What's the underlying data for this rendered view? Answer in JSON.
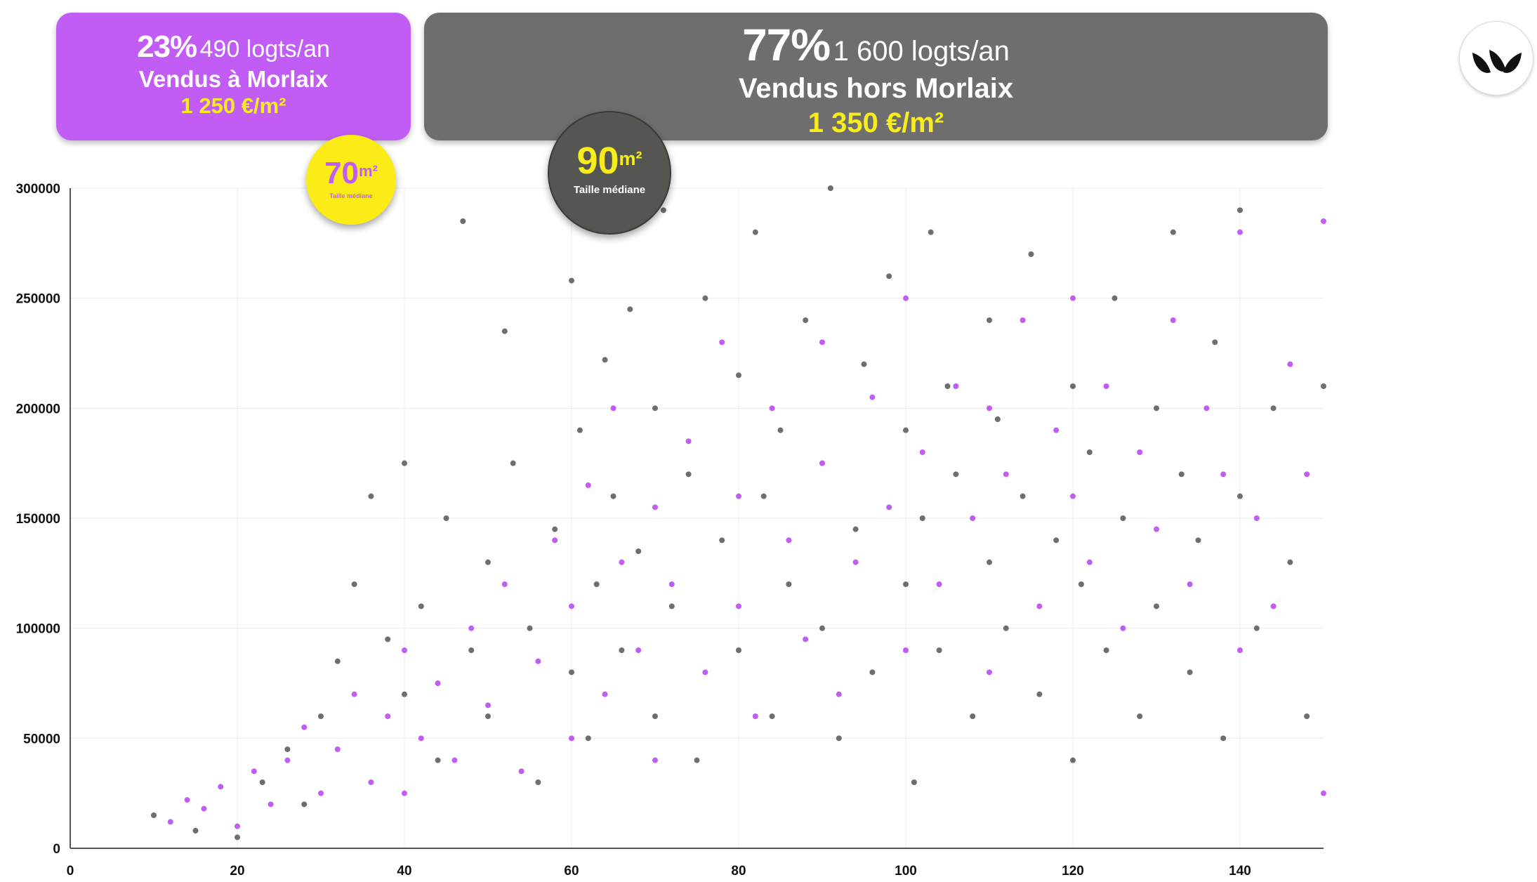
{
  "banners": {
    "morlaix": {
      "pct": "23%",
      "count": "490 logts/an",
      "label": "Vendus à Morlaix",
      "price": "1 250 €/m²",
      "color": "#c15cf5"
    },
    "hors": {
      "pct": "77%",
      "count": "1 600 logts/an",
      "label": "Vendus hors Morlaix",
      "price": "1 350 €/m²",
      "color": "#6e6e6e"
    }
  },
  "badges": {
    "morlaix": {
      "value": "70",
      "unit": "m²",
      "caption": "Taille médiane"
    },
    "hors": {
      "value": "90",
      "unit": "m²",
      "caption": "Taille médiane"
    }
  },
  "logo": {
    "icon": "leaf-logo-icon"
  },
  "chart_data": {
    "type": "scatter",
    "title": "",
    "xlabel": "",
    "ylabel": "",
    "xlim": [
      0,
      150
    ],
    "ylim": [
      0,
      300000
    ],
    "x_ticks": [
      0,
      20,
      40,
      60,
      80,
      100,
      120,
      140
    ],
    "y_ticks": [
      0,
      50000,
      100000,
      150000,
      200000,
      250000,
      300000
    ],
    "y_tick_labels": [
      "0",
      "50000",
      "100000",
      "150000",
      "200000",
      "250000",
      "300000"
    ],
    "grid": true,
    "series": [
      {
        "color": "#6e6e6e",
        "points": [
          [
            10,
            15000
          ],
          [
            15,
            8000
          ],
          [
            20,
            5000
          ],
          [
            23,
            30000
          ],
          [
            26,
            45000
          ],
          [
            28,
            20000
          ],
          [
            30,
            60000
          ],
          [
            32,
            85000
          ],
          [
            34,
            120000
          ],
          [
            36,
            160000
          ],
          [
            38,
            95000
          ],
          [
            40,
            70000
          ],
          [
            40,
            175000
          ],
          [
            42,
            110000
          ],
          [
            44,
            40000
          ],
          [
            45,
            150000
          ],
          [
            47,
            285000
          ],
          [
            48,
            90000
          ],
          [
            50,
            130000
          ],
          [
            50,
            60000
          ],
          [
            52,
            235000
          ],
          [
            53,
            175000
          ],
          [
            55,
            100000
          ],
          [
            56,
            30000
          ],
          [
            58,
            145000
          ],
          [
            60,
            80000
          ],
          [
            60,
            258000
          ],
          [
            61,
            190000
          ],
          [
            62,
            50000
          ],
          [
            63,
            120000
          ],
          [
            64,
            222000
          ],
          [
            65,
            160000
          ],
          [
            66,
            90000
          ],
          [
            67,
            245000
          ],
          [
            68,
            135000
          ],
          [
            70,
            200000
          ],
          [
            70,
            60000
          ],
          [
            71,
            290000
          ],
          [
            72,
            110000
          ],
          [
            74,
            170000
          ],
          [
            75,
            40000
          ],
          [
            76,
            250000
          ],
          [
            78,
            140000
          ],
          [
            80,
            90000
          ],
          [
            80,
            215000
          ],
          [
            82,
            280000
          ],
          [
            83,
            160000
          ],
          [
            84,
            60000
          ],
          [
            85,
            190000
          ],
          [
            86,
            120000
          ],
          [
            88,
            240000
          ],
          [
            90,
            100000
          ],
          [
            90,
            175000
          ],
          [
            91,
            300000
          ],
          [
            92,
            50000
          ],
          [
            94,
            145000
          ],
          [
            95,
            220000
          ],
          [
            96,
            80000
          ],
          [
            98,
            260000
          ],
          [
            100,
            120000
          ],
          [
            100,
            190000
          ],
          [
            101,
            30000
          ],
          [
            102,
            150000
          ],
          [
            103,
            280000
          ],
          [
            104,
            90000
          ],
          [
            105,
            210000
          ],
          [
            106,
            170000
          ],
          [
            108,
            60000
          ],
          [
            110,
            130000
          ],
          [
            110,
            240000
          ],
          [
            111,
            195000
          ],
          [
            112,
            100000
          ],
          [
            114,
            160000
          ],
          [
            115,
            270000
          ],
          [
            116,
            70000
          ],
          [
            118,
            140000
          ],
          [
            120,
            210000
          ],
          [
            120,
            40000
          ],
          [
            121,
            120000
          ],
          [
            122,
            180000
          ],
          [
            124,
            90000
          ],
          [
            125,
            250000
          ],
          [
            126,
            150000
          ],
          [
            128,
            60000
          ],
          [
            130,
            200000
          ],
          [
            130,
            110000
          ],
          [
            132,
            280000
          ],
          [
            133,
            170000
          ],
          [
            134,
            80000
          ],
          [
            135,
            140000
          ],
          [
            137,
            230000
          ],
          [
            138,
            50000
          ],
          [
            140,
            160000
          ],
          [
            140,
            290000
          ],
          [
            142,
            100000
          ],
          [
            144,
            200000
          ],
          [
            146,
            130000
          ],
          [
            148,
            60000
          ],
          [
            150,
            210000
          ]
        ]
      },
      {
        "color": "#c15cf5",
        "points": [
          [
            12,
            12000
          ],
          [
            14,
            22000
          ],
          [
            16,
            18000
          ],
          [
            18,
            28000
          ],
          [
            20,
            10000
          ],
          [
            22,
            35000
          ],
          [
            24,
            20000
          ],
          [
            26,
            40000
          ],
          [
            28,
            55000
          ],
          [
            30,
            25000
          ],
          [
            32,
            45000
          ],
          [
            34,
            70000
          ],
          [
            36,
            30000
          ],
          [
            38,
            60000
          ],
          [
            40,
            90000
          ],
          [
            40,
            25000
          ],
          [
            42,
            50000
          ],
          [
            44,
            75000
          ],
          [
            46,
            40000
          ],
          [
            48,
            100000
          ],
          [
            50,
            65000
          ],
          [
            52,
            120000
          ],
          [
            54,
            35000
          ],
          [
            56,
            85000
          ],
          [
            58,
            140000
          ],
          [
            60,
            50000
          ],
          [
            60,
            110000
          ],
          [
            62,
            165000
          ],
          [
            64,
            70000
          ],
          [
            65,
            200000
          ],
          [
            66,
            130000
          ],
          [
            68,
            90000
          ],
          [
            70,
            155000
          ],
          [
            70,
            40000
          ],
          [
            72,
            120000
          ],
          [
            74,
            185000
          ],
          [
            76,
            80000
          ],
          [
            78,
            230000
          ],
          [
            80,
            110000
          ],
          [
            80,
            160000
          ],
          [
            82,
            60000
          ],
          [
            84,
            200000
          ],
          [
            86,
            140000
          ],
          [
            88,
            95000
          ],
          [
            90,
            175000
          ],
          [
            90,
            230000
          ],
          [
            92,
            70000
          ],
          [
            94,
            130000
          ],
          [
            96,
            205000
          ],
          [
            98,
            155000
          ],
          [
            100,
            90000
          ],
          [
            100,
            250000
          ],
          [
            102,
            180000
          ],
          [
            104,
            120000
          ],
          [
            106,
            210000
          ],
          [
            108,
            150000
          ],
          [
            110,
            80000
          ],
          [
            110,
            200000
          ],
          [
            112,
            170000
          ],
          [
            114,
            240000
          ],
          [
            116,
            110000
          ],
          [
            118,
            190000
          ],
          [
            120,
            160000
          ],
          [
            120,
            250000
          ],
          [
            122,
            130000
          ],
          [
            124,
            210000
          ],
          [
            126,
            100000
          ],
          [
            128,
            180000
          ],
          [
            130,
            145000
          ],
          [
            132,
            240000
          ],
          [
            134,
            120000
          ],
          [
            136,
            200000
          ],
          [
            138,
            170000
          ],
          [
            140,
            90000
          ],
          [
            140,
            280000
          ],
          [
            142,
            150000
          ],
          [
            144,
            110000
          ],
          [
            146,
            220000
          ],
          [
            148,
            170000
          ],
          [
            150,
            285000
          ],
          [
            150,
            25000
          ]
        ]
      }
    ]
  }
}
